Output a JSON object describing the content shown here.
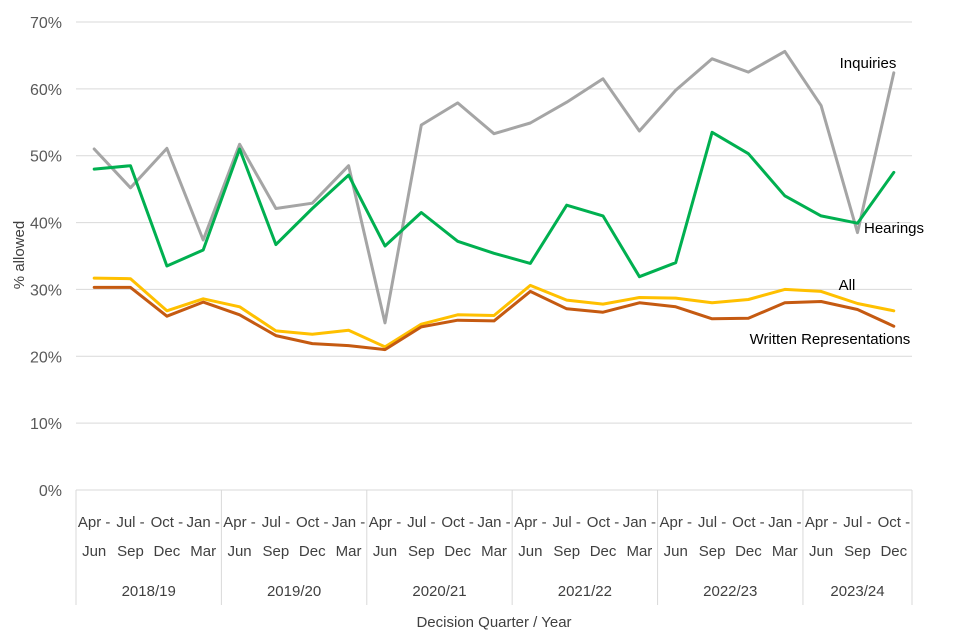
{
  "chart_data": {
    "type": "line",
    "title": "",
    "xlabel": "Decision Quarter / Year",
    "ylabel": "% allowed",
    "ylim": [
      0,
      70
    ],
    "yticks": [
      "0%",
      "10%",
      "20%",
      "30%",
      "40%",
      "50%",
      "60%",
      "70%"
    ],
    "grid": true,
    "categories": [
      "Apr - Jun",
      "Jul - Sep",
      "Oct - Dec",
      "Jan - Mar",
      "Apr - Jun",
      "Jul - Sep",
      "Oct - Dec",
      "Jan - Mar",
      "Apr - Jun",
      "Jul - Sep",
      "Oct - Dec",
      "Jan - Mar",
      "Apr - Jun",
      "Jul - Sep",
      "Oct - Dec",
      "Jan - Mar",
      "Apr - Jun",
      "Jul - Sep",
      "Oct - Dec",
      "Jan - Mar",
      "Apr - Jun",
      "Jul - Sep",
      "Oct - Dec"
    ],
    "groups": [
      {
        "label": "2018/19",
        "count": 4
      },
      {
        "label": "2019/20",
        "count": 4
      },
      {
        "label": "2020/21",
        "count": 4
      },
      {
        "label": "2021/22",
        "count": 4
      },
      {
        "label": "2022/23",
        "count": 4
      },
      {
        "label": "2023/24",
        "count": 3
      }
    ],
    "series": [
      {
        "name": "Inquiries",
        "color": "#A5A5A5",
        "values": [
          51.0,
          45.2,
          51.1,
          37.4,
          51.7,
          42.1,
          42.9,
          48.5,
          25.0,
          54.6,
          57.9,
          53.3,
          54.9,
          58.0,
          61.5,
          53.7,
          59.8,
          64.5,
          62.5,
          65.6,
          57.5,
          38.5,
          62.4
        ]
      },
      {
        "name": "Hearings",
        "color": "#00B050",
        "values": [
          48.0,
          48.5,
          33.5,
          35.9,
          51.0,
          36.7,
          42.1,
          47.1,
          36.5,
          41.5,
          37.2,
          35.4,
          33.9,
          42.6,
          41.0,
          31.9,
          34.0,
          53.5,
          50.3,
          44.0,
          41.0,
          39.9,
          47.5
        ]
      },
      {
        "name": "All",
        "color": "#FFC000",
        "values": [
          31.7,
          31.6,
          26.8,
          28.6,
          27.4,
          23.8,
          23.3,
          23.9,
          21.4,
          24.8,
          26.2,
          26.1,
          30.6,
          28.4,
          27.8,
          28.8,
          28.7,
          28.0,
          28.5,
          30.0,
          29.7,
          27.9,
          26.8
        ]
      },
      {
        "name": "Written Representations",
        "color": "#C55A11",
        "values": [
          30.3,
          30.3,
          26.0,
          28.1,
          26.2,
          23.1,
          21.9,
          21.6,
          21.0,
          24.4,
          25.4,
          25.3,
          29.7,
          27.1,
          26.6,
          28.0,
          27.4,
          25.6,
          25.7,
          28.0,
          28.2,
          27.0,
          24.5
        ]
      }
    ]
  }
}
